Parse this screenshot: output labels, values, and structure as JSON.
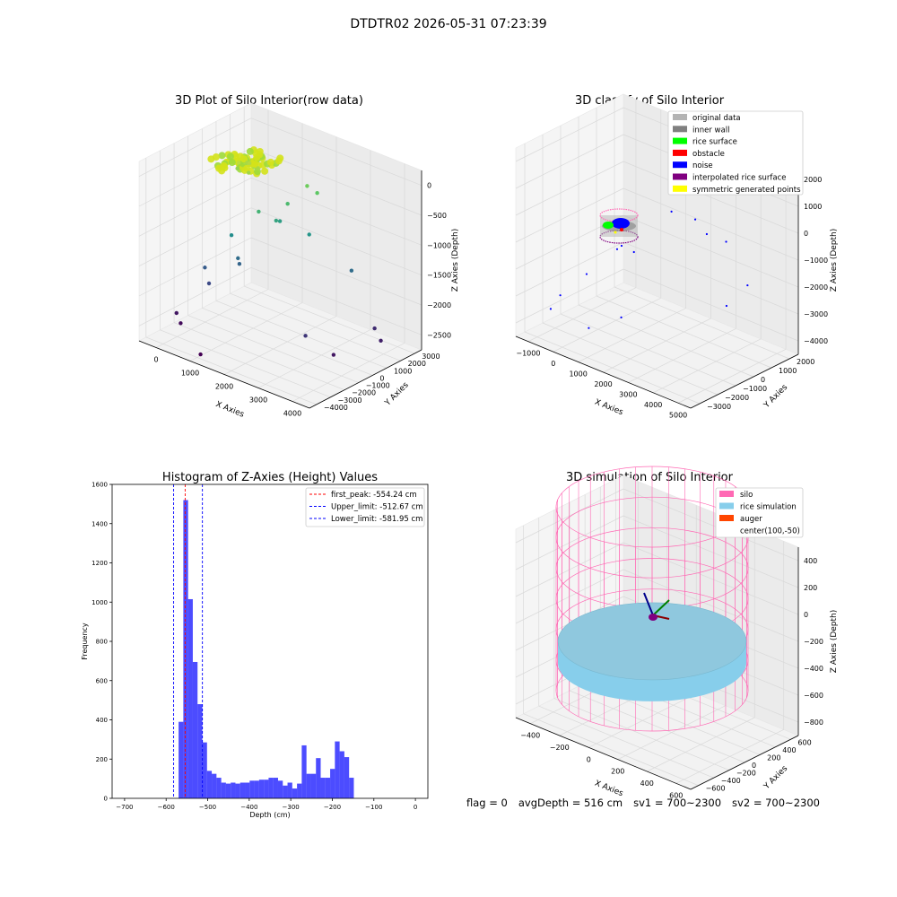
{
  "figure": {
    "suptitle": "DTDTR02 2026-05-31 07:23:39",
    "footer": {
      "flag": "flag = 0",
      "avg_depth": "avgDepth = 516 cm",
      "sv1": "sv1 = 700~2300",
      "sv2": "sv2 = 700~2300"
    }
  },
  "chart_data": [
    {
      "type": "scatter",
      "projection": "3d",
      "title": "3D Plot of Silo Interior(row data)",
      "xlabel": "X Axies",
      "ylabel": "Y Axies",
      "zlabel": "Z Axies (Depth)",
      "x_ticks": [
        "0",
        "1000",
        "2000",
        "3000",
        "4000"
      ],
      "y_ticks": [
        "−4000",
        "−3000",
        "−2000",
        "−1000",
        "0",
        "1000",
        "2000",
        "3000"
      ],
      "z_ticks": [
        "−2500",
        "−2000",
        "−1500",
        "−1000",
        "−500",
        "0"
      ],
      "xlim": [
        -600,
        4200
      ],
      "ylim": [
        -4300,
        3300
      ],
      "zlim": [
        -2900,
        200
      ],
      "colormap": "viridis",
      "points": [
        {
          "x": 450,
          "y": 500,
          "z": -200
        },
        {
          "x": 600,
          "y": 300,
          "z": -150
        },
        {
          "x": 500,
          "y": -200,
          "z": -100
        },
        {
          "x": 700,
          "y": 0,
          "z": -250
        },
        {
          "x": 300,
          "y": 200,
          "z": -300
        },
        {
          "x": 800,
          "y": 400,
          "z": -200
        },
        {
          "x": 1600,
          "y": 1800,
          "z": -500
        },
        {
          "x": 1800,
          "y": 2000,
          "z": -600
        },
        {
          "x": 900,
          "y": 200,
          "z": -900
        },
        {
          "x": 1300,
          "y": 1200,
          "z": -800
        },
        {
          "x": 1100,
          "y": 900,
          "z": -1100
        },
        {
          "x": 1000,
          "y": 1400,
          "z": -1200
        },
        {
          "x": 300,
          "y": -200,
          "z": -1400
        },
        {
          "x": 1700,
          "y": 1700,
          "z": -1300
        },
        {
          "x": 400,
          "y": 0,
          "z": -1800
        },
        {
          "x": 420,
          "y": 50,
          "z": -1900
        },
        {
          "x": 2600,
          "y": 2400,
          "z": -1800
        },
        {
          "x": 3500,
          "y": 1800,
          "z": -2500
        },
        {
          "x": 3800,
          "y": 1500,
          "z": -2600
        },
        {
          "x": 3300,
          "y": -500,
          "z": -2700
        },
        {
          "x": 2800,
          "y": -1200,
          "z": -2400
        },
        {
          "x": -200,
          "y": -800,
          "z": -2000
        },
        {
          "x": 0,
          "y": -1000,
          "z": -2200
        },
        {
          "x": -500,
          "y": -2000,
          "z": -2700
        },
        {
          "x": -300,
          "y": -2200,
          "z": -2800
        },
        {
          "x": 800,
          "y": -3500,
          "z": -2900
        }
      ]
    },
    {
      "type": "scatter",
      "projection": "3d",
      "title": "3D classify of Silo Interior",
      "xlabel": "X Axies",
      "ylabel": "Y Axies",
      "zlabel": "Z Axies (Depth)",
      "x_ticks": [
        "−1000",
        "0",
        "1000",
        "2000",
        "3000",
        "4000",
        "5000"
      ],
      "y_ticks": [
        "−3000",
        "−2000",
        "−1000",
        "0",
        "1000",
        "2000"
      ],
      "z_ticks": [
        "−4000",
        "−3000",
        "−2000",
        "−1000",
        "0",
        "1000",
        "2000"
      ],
      "xlim": [
        -1400,
        5200
      ],
      "ylim": [
        -3600,
        2600
      ],
      "zlim": [
        -4400,
        2300
      ],
      "legend_position": "top-right",
      "legend": [
        {
          "label": "original data",
          "color": "#b3b3b3"
        },
        {
          "label": "inner wall",
          "color": "#808080"
        },
        {
          "label": "rice surface",
          "color": "#00ff00"
        },
        {
          "label": "obstacle",
          "color": "#ff0000"
        },
        {
          "label": "noise",
          "color": "#0000ff"
        },
        {
          "label": "interpolated rice surface",
          "color": "#800080"
        },
        {
          "label": "symmetric generated points",
          "color": "#ffff00"
        }
      ],
      "noise_points": [
        {
          "x": 1200,
          "y": 1400,
          "z": -500
        },
        {
          "x": 1900,
          "y": 1700,
          "z": -600
        },
        {
          "x": 2400,
          "y": 1600,
          "z": -900
        },
        {
          "x": 3000,
          "y": 1800,
          "z": -1000
        },
        {
          "x": 300,
          "y": -100,
          "z": -1600
        },
        {
          "x": 700,
          "y": 0,
          "z": -1700
        },
        {
          "x": 0,
          "y": 100,
          "z": -1900
        },
        {
          "x": 4200,
          "y": 1200,
          "z": -1900
        },
        {
          "x": 3800,
          "y": 600,
          "z": -2600
        },
        {
          "x": -300,
          "y": -1200,
          "z": -2500
        },
        {
          "x": 1400,
          "y": -1800,
          "z": -3200
        },
        {
          "x": -900,
          "y": -1800,
          "z": -3300
        },
        {
          "x": 700,
          "y": -2600,
          "z": -3600
        },
        {
          "x": -1000,
          "y": -2200,
          "z": -3700
        }
      ]
    },
    {
      "type": "histogram",
      "title": "Histogram of Z-Axies (Height) Values",
      "xlabel": "Depth (cm)",
      "ylabel": "Frequency",
      "xlim": [
        -730,
        30
      ],
      "ylim": [
        0,
        1600
      ],
      "x_ticks": [
        "−700",
        "−600",
        "−500",
        "−400",
        "−300",
        "−200",
        "−100",
        "0"
      ],
      "y_ticks": [
        "0",
        "200",
        "400",
        "600",
        "800",
        "1000",
        "1200",
        "1400",
        "1600"
      ],
      "bar_color": "#0000ff",
      "bin_start": -570,
      "bin_width": 11.4,
      "counts": [
        390,
        1520,
        1015,
        695,
        480,
        285,
        140,
        125,
        105,
        80,
        75,
        80,
        75,
        80,
        80,
        90,
        90,
        95,
        95,
        105,
        105,
        90,
        65,
        80,
        50,
        75,
        270,
        125,
        125,
        205,
        105,
        105,
        150,
        290,
        240,
        210,
        105
      ],
      "legend_position": "top-right",
      "reference_lines": [
        {
          "label": "first_peak: -554.24 cm",
          "x": -554.24,
          "color": "#ff0000"
        },
        {
          "label": "Upper_limit: -512.67 cm",
          "x": -512.67,
          "color": "#0000ff"
        },
        {
          "label": "Lower_limit: -581.95 cm",
          "x": -581.95,
          "color": "#0000ff"
        }
      ]
    },
    {
      "type": "surface",
      "projection": "3d",
      "title": "3D simulation of Silo Interior",
      "xlabel": "X Axies",
      "ylabel": "Y Axies",
      "zlabel": "Z Axies (Depth)",
      "x_ticks": [
        "−400",
        "−200",
        "0",
        "200",
        "400",
        "600"
      ],
      "y_ticks": [
        "−600",
        "−400",
        "−200",
        "0",
        "200",
        "400",
        "600"
      ],
      "z_ticks": [
        "−800",
        "−600",
        "−400",
        "−200",
        "0",
        "200",
        "400"
      ],
      "xlim": [
        -500,
        700
      ],
      "ylim": [
        -700,
        700
      ],
      "zlim": [
        -950,
        450
      ],
      "legend_position": "top-right",
      "legend": [
        {
          "label": "silo",
          "color": "#ff69b4"
        },
        {
          "label": "rice simulation",
          "color": "#87ceeb"
        },
        {
          "label": "auger",
          "color": "#ff4500"
        },
        {
          "label": "center(100,-50)",
          "color": ""
        }
      ],
      "silo": {
        "center_x": 100,
        "center_y": -50,
        "radius": 560,
        "z_top": 150,
        "z_bottom": -950
      },
      "rice_surface_z": -516
    }
  ]
}
